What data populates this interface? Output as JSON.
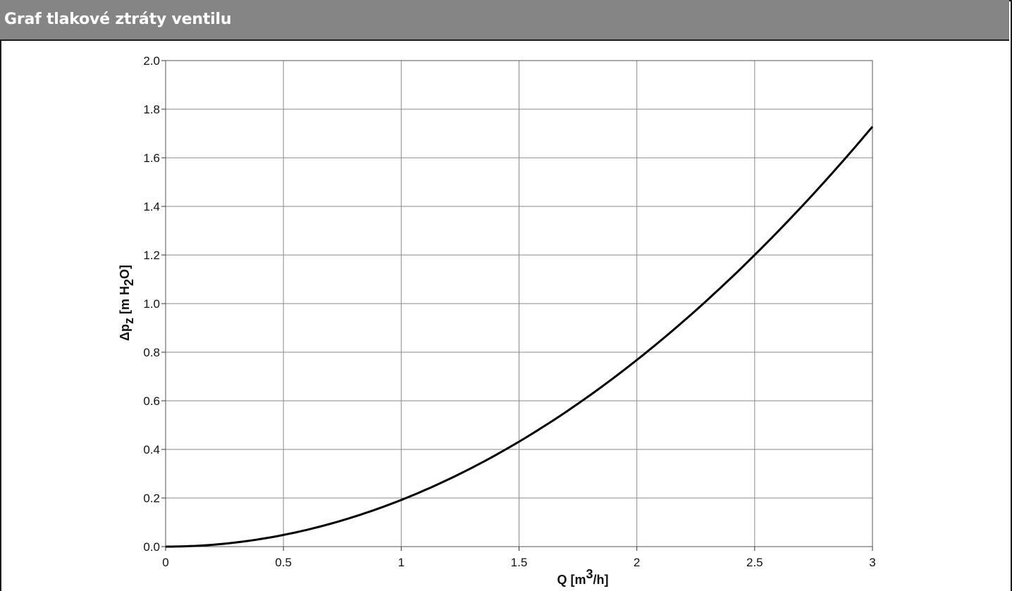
{
  "header": {
    "title": "Graf tlakové ztráty ventilu"
  },
  "chart_data": {
    "type": "line",
    "title": "",
    "xlabel": "Q  [m3/h]",
    "ylabel": "Δpz  [m H2O]",
    "xlim": [
      0,
      3
    ],
    "ylim": [
      0,
      2.0
    ],
    "x_ticks": [
      "0",
      "0.5",
      "1",
      "1.5",
      "2",
      "2.5",
      "3"
    ],
    "y_ticks": [
      "0.0",
      "0.2",
      "0.4",
      "0.6",
      "0.8",
      "1.0",
      "1.2",
      "1.4",
      "1.6",
      "1.8",
      "2.0"
    ],
    "grid": true,
    "series": [
      {
        "x": [
          0,
          0.25,
          0.5,
          0.75,
          1.0,
          1.25,
          1.5,
          1.75,
          2.0,
          2.25,
          2.5,
          2.75,
          3.0
        ],
        "y": [
          0,
          0.012,
          0.048,
          0.108,
          0.192,
          0.3,
          0.432,
          0.588,
          0.768,
          0.972,
          1.2,
          1.452,
          1.728
        ],
        "color": "#000000"
      }
    ]
  }
}
